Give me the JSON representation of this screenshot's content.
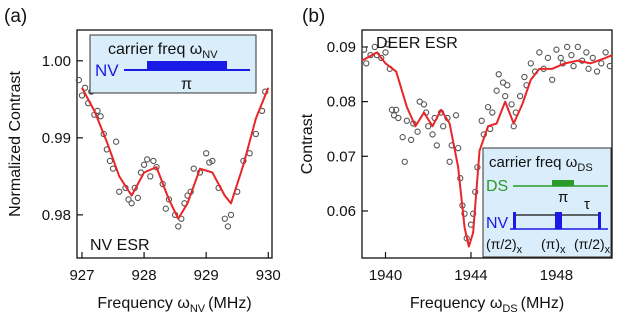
{
  "chart_data": [
    {
      "type": "scatter",
      "panel_label": "(a)",
      "annotation": "NV ESR",
      "ylabel": "Normalized Contrast",
      "xlabel": "Frequency ω",
      "xlabel_subscript": "NV",
      "xlabel_unit": "(MHz)",
      "xlim": [
        926.92,
        930.06
      ],
      "ylim": [
        0.9744,
        1.004
      ],
      "xticks": [
        927,
        928,
        929,
        930
      ],
      "yticks": [
        0.98,
        0.99,
        {
          "value": 1,
          "label": "1.00"
        }
      ],
      "grid": false,
      "inset": {
        "title": "carrier freq ω",
        "title_subscript": "NV",
        "channel": "NV",
        "pulse": "π"
      },
      "series": [
        {
          "mode": "markers",
          "color": "#555555",
          "x": [
            926.95,
            927.0,
            927.05,
            927.1,
            927.15,
            927.2,
            927.25,
            927.3,
            927.35,
            927.4,
            927.45,
            927.5,
            927.55,
            927.6,
            927.7,
            927.75,
            927.8,
            927.85,
            927.9,
            927.95,
            928.0,
            928.05,
            928.1,
            928.15,
            928.2,
            928.3,
            928.35,
            928.4,
            928.5,
            928.55,
            928.6,
            928.65,
            928.7,
            928.75,
            928.8,
            928.9,
            929.0,
            929.05,
            929.1,
            929.2,
            929.3,
            929.35,
            929.4,
            929.5,
            929.6,
            929.7,
            929.8,
            929.9,
            929.95
          ],
          "values": [
            0.9975,
            0.9955,
            0.9965,
            0.9945,
            0.996,
            0.993,
            0.9935,
            0.9928,
            0.9905,
            0.9885,
            0.987,
            0.986,
            0.9895,
            0.983,
            0.9835,
            0.982,
            0.9815,
            0.9835,
            0.9822,
            0.9855,
            0.9865,
            0.9872,
            0.985,
            0.987,
            0.9862,
            0.984,
            0.9808,
            0.982,
            0.98,
            0.9785,
            0.9795,
            0.9815,
            0.9825,
            0.983,
            0.986,
            0.9855,
            0.988,
            0.9868,
            0.987,
            0.9835,
            0.9795,
            0.9785,
            0.98,
            0.983,
            0.987,
            0.988,
            0.9905,
            0.9935,
            0.996
          ]
        },
        {
          "mode": "line",
          "color": "#e8262a",
          "x": [
            927.0,
            927.2,
            927.4,
            927.6,
            927.8,
            928.0,
            928.2,
            928.4,
            928.55,
            928.7,
            928.9,
            929.1,
            929.3,
            929.4,
            929.6,
            929.8,
            930.0
          ],
          "values": [
            0.9965,
            0.9935,
            0.9895,
            0.985,
            0.9825,
            0.9855,
            0.9862,
            0.982,
            0.9795,
            0.9815,
            0.986,
            0.9855,
            0.9825,
            0.9815,
            0.9865,
            0.9925,
            0.9965
          ]
        }
      ]
    },
    {
      "type": "scatter",
      "panel_label": "(b)",
      "annotation": "DEER ESR",
      "ylabel": "Contrast",
      "xlabel": "Frequency ω",
      "xlabel_subscript": "DS",
      "xlabel_unit": "(MHz)",
      "xlim": [
        1938.9,
        1950.6
      ],
      "ylim": [
        0.0514,
        0.0931
      ],
      "xticks": [
        1940,
        1944,
        1948
      ],
      "yticks": [
        0.06,
        0.07,
        0.08,
        0.09
      ],
      "grid": false,
      "inset": {
        "title": "carrier freq ω",
        "title_subscript": "DS",
        "channels": [
          "DS",
          "NV"
        ],
        "pulse": "π",
        "delay": "τ",
        "pulse_labels": [
          "(π/2)",
          "(π)",
          "(π/2)"
        ],
        "pulse_subscript": "x"
      },
      "series": [
        {
          "mode": "markers",
          "color": "#555555",
          "x": [
            1939.0,
            1939.1,
            1939.3,
            1939.5,
            1939.6,
            1939.8,
            1940.0,
            1940.1,
            1940.2,
            1940.3,
            1940.4,
            1940.5,
            1940.6,
            1940.8,
            1940.9,
            1941.0,
            1941.2,
            1941.3,
            1941.5,
            1941.6,
            1941.8,
            1941.9,
            1942.0,
            1942.2,
            1942.3,
            1942.4,
            1942.6,
            1942.7,
            1942.9,
            1943.0,
            1943.1,
            1943.3,
            1943.4,
            1943.5,
            1943.6,
            1943.7,
            1943.8,
            1944.0,
            1944.1,
            1944.2,
            1944.3,
            1944.5,
            1944.6,
            1944.8,
            1944.9,
            1945.0,
            1945.2,
            1945.3,
            1945.5,
            1945.6,
            1945.7,
            1945.9,
            1946.0,
            1946.1,
            1946.3,
            1946.5,
            1946.6,
            1946.8,
            1947.0,
            1947.2,
            1947.4,
            1947.6,
            1947.8,
            1948.0,
            1948.2,
            1948.3,
            1948.5,
            1948.7,
            1948.8,
            1949.0,
            1949.2,
            1949.4,
            1949.5,
            1949.7,
            1949.9,
            1950.1,
            1950.3,
            1950.5
          ],
          "values": [
            0.0895,
            0.087,
            0.0885,
            0.09,
            0.0885,
            0.088,
            0.089,
            0.0905,
            0.086,
            0.0785,
            0.0775,
            0.0785,
            0.077,
            0.0735,
            0.069,
            0.0765,
            0.073,
            0.076,
            0.0745,
            0.08,
            0.0795,
            0.078,
            0.0755,
            0.074,
            0.077,
            0.072,
            0.078,
            0.0755,
            0.077,
            0.069,
            0.072,
            0.0775,
            0.0715,
            0.066,
            0.061,
            0.0595,
            0.055,
            0.0575,
            0.0595,
            0.0635,
            0.068,
            0.0765,
            0.074,
            0.079,
            0.075,
            0.078,
            0.082,
            0.085,
            0.0835,
            0.081,
            0.083,
            0.0795,
            0.0755,
            0.078,
            0.081,
            0.0845,
            0.083,
            0.087,
            0.0855,
            0.089,
            0.086,
            0.088,
            0.084,
            0.0895,
            0.088,
            0.087,
            0.09,
            0.0885,
            0.0865,
            0.09,
            0.0875,
            0.089,
            0.086,
            0.088,
            0.0855,
            0.087,
            0.089,
            0.0865
          ]
        },
        {
          "mode": "line",
          "color": "#e8262a",
          "x": [
            1938.9,
            1939.6,
            1940.0,
            1940.5,
            1941.0,
            1941.4,
            1941.8,
            1942.2,
            1942.6,
            1943.0,
            1943.4,
            1943.7,
            1943.9,
            1944.1,
            1944.4,
            1944.8,
            1945.2,
            1945.6,
            1946.0,
            1946.4,
            1946.8,
            1947.2,
            1947.8,
            1948.4,
            1949.0,
            1949.6,
            1950.3,
            1950.6
          ],
          "values": [
            0.0875,
            0.089,
            0.087,
            0.0855,
            0.079,
            0.0755,
            0.078,
            0.0755,
            0.0785,
            0.076,
            0.068,
            0.057,
            0.0535,
            0.056,
            0.071,
            0.0755,
            0.076,
            0.08,
            0.076,
            0.0795,
            0.084,
            0.086,
            0.086,
            0.087,
            0.0875,
            0.087,
            0.088,
            0.0885
          ]
        }
      ]
    }
  ]
}
